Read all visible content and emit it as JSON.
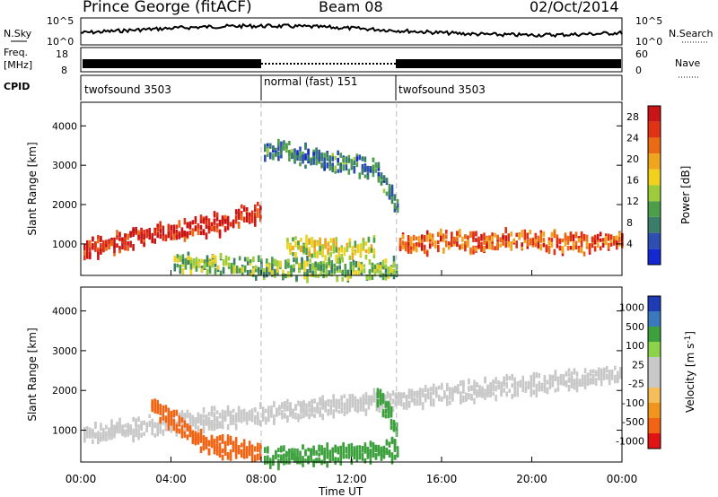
{
  "header": {
    "station": "Prince George (fitACF)",
    "beam": "Beam 08",
    "date": "02/Oct/2014"
  },
  "panels": {
    "noise": {
      "left_label": "N.Sky",
      "right_label": "N.Search",
      "y_ticks": [
        "10^5",
        "10^0"
      ],
      "right_ticks": [
        "10^5",
        "10^0"
      ]
    },
    "freq": {
      "left_label_1": "Freq.",
      "left_label_2": "[MHz]",
      "left_ticks": [
        "18",
        "8"
      ],
      "right_label": "Nave",
      "right_ticks": [
        "60",
        "0"
      ]
    },
    "cpid": {
      "label": "CPID"
    }
  },
  "colors": {
    "power": [
      "#1428d2",
      "#2e4fb0",
      "#3a7e6a",
      "#4d9e4a",
      "#9ccc3a",
      "#f0d21e",
      "#f0a51e",
      "#eb6a14",
      "#e03214",
      "#c81414"
    ],
    "velocity": [
      "#e01414",
      "#f06414",
      "#f0961e",
      "#f5be5a",
      "#c8c8c8",
      "#c8c8c8",
      "#8cd24b",
      "#3ca03c",
      "#3c78be",
      "#1e3cb4"
    ]
  },
  "chart_data": [
    {
      "type": "table",
      "name": "cpid",
      "segments": [
        {
          "label": "twofsound 3503",
          "start": 0,
          "end": 8
        },
        {
          "label": "normal (fast) 151",
          "start": 8,
          "end": 14
        },
        {
          "label": "twofsound 3503",
          "start": 14,
          "end": 24
        }
      ]
    },
    {
      "type": "heatmap",
      "name": "power",
      "title": "",
      "xlabel": "Time UT",
      "ylabel": "Slant Range [km]",
      "xlim": [
        0,
        24
      ],
      "ylim": [
        200,
        4600
      ],
      "x_ticks": [
        "00:00",
        "04:00",
        "08:00",
        "12:00",
        "16:00",
        "20:00",
        "00:00"
      ],
      "y_ticks": [
        1000,
        2000,
        3000,
        4000
      ],
      "colorbar": {
        "label": "Power [dB]",
        "ticks": [
          4,
          8,
          12,
          16,
          20,
          24,
          28
        ],
        "range": [
          0,
          30
        ]
      },
      "features": [
        {
          "desc": "main echo band",
          "t": [
            0,
            2,
            3,
            4,
            6,
            8
          ],
          "range": [
            850,
            1100,
            1250,
            1300,
            1500,
            1800
          ],
          "value": 26
        },
        {
          "desc": "near-range band",
          "t": [
            4,
            6,
            8,
            10,
            12,
            14
          ],
          "range": [
            500,
            450,
            400,
            350,
            350,
            350
          ],
          "value": 10
        },
        {
          "desc": "arc",
          "t": [
            8,
            9,
            10,
            11,
            12,
            13,
            14
          ],
          "range": [
            3300,
            3400,
            3200,
            3100,
            3000,
            2900,
            2000
          ],
          "value": 6
        },
        {
          "desc": "mid band",
          "t": [
            9,
            10,
            11,
            12,
            13
          ],
          "range": [
            950,
            900,
            850,
            900,
            950
          ],
          "value": 14
        },
        {
          "desc": "late band",
          "t": [
            14,
            16,
            18,
            20,
            22,
            24
          ],
          "range": [
            1000,
            1050,
            1050,
            1100,
            1000,
            1100
          ],
          "value": 22
        }
      ]
    },
    {
      "type": "heatmap",
      "name": "velocity",
      "title": "",
      "xlabel": "Time UT",
      "ylabel": "Slant Range [km]",
      "xlim": [
        0,
        24
      ],
      "ylim": [
        200,
        4600
      ],
      "x_ticks": [
        "00:00",
        "04:00",
        "08:00",
        "12:00",
        "16:00",
        "20:00",
        "00:00"
      ],
      "y_ticks": [
        1000,
        2000,
        3000,
        4000
      ],
      "colorbar": {
        "label": "Velocity [m s^-1]",
        "ticks": [
          "1000",
          "500",
          "100",
          "25",
          "-25",
          "-100",
          "-500",
          "-1000"
        ]
      },
      "features": [
        {
          "desc": "ground scatter",
          "t": [
            0,
            24
          ],
          "range": [
            900,
            2400
          ],
          "value": 0
        },
        {
          "desc": "negative flow",
          "t": [
            3,
            4,
            5,
            6,
            7,
            8
          ],
          "range": [
            1700,
            1300,
            800,
            600,
            500,
            450
          ],
          "value": -300
        },
        {
          "desc": "positive near range",
          "t": [
            8,
            10,
            12,
            14
          ],
          "range": [
            350,
            350,
            400,
            500
          ],
          "value": 150
        },
        {
          "desc": "arc",
          "t": [
            13,
            14
          ],
          "range": [
            2000,
            1000
          ],
          "value": 200
        }
      ]
    }
  ]
}
